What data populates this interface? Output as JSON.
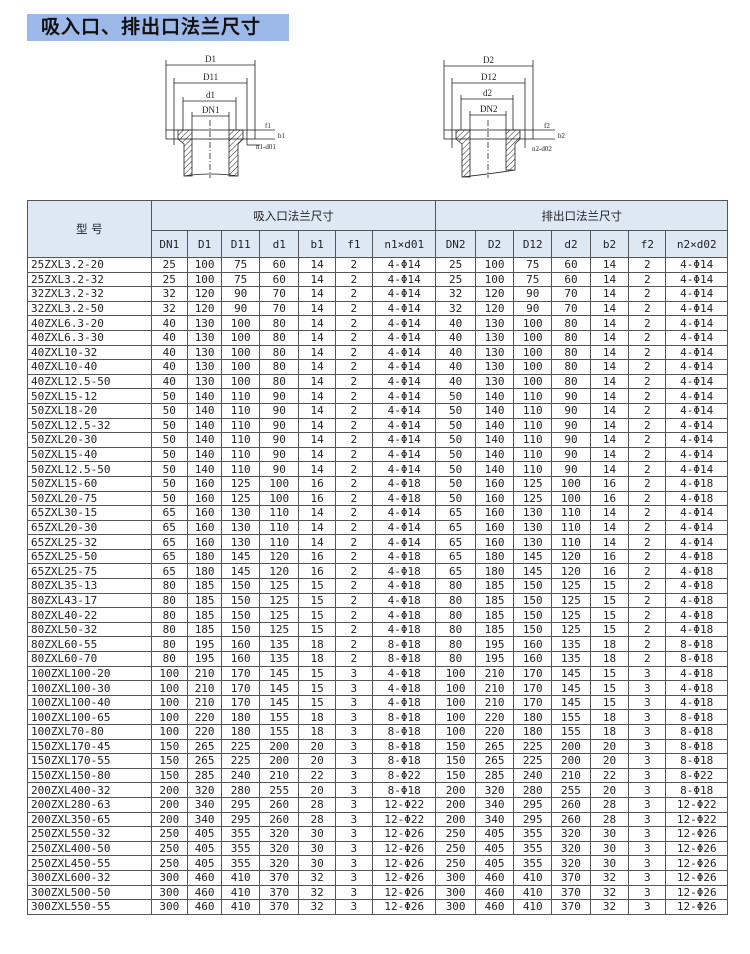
{
  "title": "吸入口、排出口法兰尺寸",
  "diagram_inlet": {
    "D": "D1",
    "D1x": "D11",
    "d": "d1",
    "DN": "DN1",
    "f": "f1",
    "b": "b1",
    "nd": "n1-d01"
  },
  "diagram_outlet": {
    "D": "D2",
    "D1x": "D12",
    "d": "d2",
    "DN": "DN2",
    "f": "f2",
    "b": "b2",
    "nd": "n2-d02"
  },
  "table": {
    "model_header": "型  号",
    "inlet_header": "吸入口法兰尺寸",
    "outlet_header": "排出口法兰尺寸",
    "columns": [
      "DN1",
      "D1",
      "D11",
      "d1",
      "b1",
      "f1",
      "n1×d01",
      "DN2",
      "D2",
      "D12",
      "d2",
      "b2",
      "f2",
      "n2×d02"
    ],
    "rows": [
      [
        "25ZXL3.2-20",
        "25",
        "100",
        "75",
        "60",
        "14",
        "2",
        "4-Φ14",
        "25",
        "100",
        "75",
        "60",
        "14",
        "2",
        "4-Φ14"
      ],
      [
        "25ZXL3.2-32",
        "25",
        "100",
        "75",
        "60",
        "14",
        "2",
        "4-Φ14",
        "25",
        "100",
        "75",
        "60",
        "14",
        "2",
        "4-Φ14"
      ],
      [
        "32ZXL3.2-32",
        "32",
        "120",
        "90",
        "70",
        "14",
        "2",
        "4-Φ14",
        "32",
        "120",
        "90",
        "70",
        "14",
        "2",
        "4-Φ14"
      ],
      [
        "32ZXL3.2-50",
        "32",
        "120",
        "90",
        "70",
        "14",
        "2",
        "4-Φ14",
        "32",
        "120",
        "90",
        "70",
        "14",
        "2",
        "4-Φ14"
      ],
      [
        "40ZXL6.3-20",
        "40",
        "130",
        "100",
        "80",
        "14",
        "2",
        "4-Φ14",
        "40",
        "130",
        "100",
        "80",
        "14",
        "2",
        "4-Φ14"
      ],
      [
        "40ZXL6.3-30",
        "40",
        "130",
        "100",
        "80",
        "14",
        "2",
        "4-Φ14",
        "40",
        "130",
        "100",
        "80",
        "14",
        "2",
        "4-Φ14"
      ],
      [
        "40ZXL10-32",
        "40",
        "130",
        "100",
        "80",
        "14",
        "2",
        "4-Φ14",
        "40",
        "130",
        "100",
        "80",
        "14",
        "2",
        "4-Φ14"
      ],
      [
        "40ZXL10-40",
        "40",
        "130",
        "100",
        "80",
        "14",
        "2",
        "4-Φ14",
        "40",
        "130",
        "100",
        "80",
        "14",
        "2",
        "4-Φ14"
      ],
      [
        "40ZXL12.5-50",
        "40",
        "130",
        "100",
        "80",
        "14",
        "2",
        "4-Φ14",
        "40",
        "130",
        "100",
        "80",
        "14",
        "2",
        "4-Φ14"
      ],
      [
        "50ZXL15-12",
        "50",
        "140",
        "110",
        "90",
        "14",
        "2",
        "4-Φ14",
        "50",
        "140",
        "110",
        "90",
        "14",
        "2",
        "4-Φ14"
      ],
      [
        "50ZXL18-20",
        "50",
        "140",
        "110",
        "90",
        "14",
        "2",
        "4-Φ14",
        "50",
        "140",
        "110",
        "90",
        "14",
        "2",
        "4-Φ14"
      ],
      [
        "50ZXL12.5-32",
        "50",
        "140",
        "110",
        "90",
        "14",
        "2",
        "4-Φ14",
        "50",
        "140",
        "110",
        "90",
        "14",
        "2",
        "4-Φ14"
      ],
      [
        "50ZXL20-30",
        "50",
        "140",
        "110",
        "90",
        "14",
        "2",
        "4-Φ14",
        "50",
        "140",
        "110",
        "90",
        "14",
        "2",
        "4-Φ14"
      ],
      [
        "50ZXL15-40",
        "50",
        "140",
        "110",
        "90",
        "14",
        "2",
        "4-Φ14",
        "50",
        "140",
        "110",
        "90",
        "14",
        "2",
        "4-Φ14"
      ],
      [
        "50ZXL12.5-50",
        "50",
        "140",
        "110",
        "90",
        "14",
        "2",
        "4-Φ14",
        "50",
        "140",
        "110",
        "90",
        "14",
        "2",
        "4-Φ14"
      ],
      [
        "50ZXL15-60",
        "50",
        "160",
        "125",
        "100",
        "16",
        "2",
        "4-Φ18",
        "50",
        "160",
        "125",
        "100",
        "16",
        "2",
        "4-Φ18"
      ],
      [
        "50ZXL20-75",
        "50",
        "160",
        "125",
        "100",
        "16",
        "2",
        "4-Φ18",
        "50",
        "160",
        "125",
        "100",
        "16",
        "2",
        "4-Φ18"
      ],
      [
        "65ZXL30-15",
        "65",
        "160",
        "130",
        "110",
        "14",
        "2",
        "4-Φ14",
        "65",
        "160",
        "130",
        "110",
        "14",
        "2",
        "4-Φ14"
      ],
      [
        "65ZXL20-30",
        "65",
        "160",
        "130",
        "110",
        "14",
        "2",
        "4-Φ14",
        "65",
        "160",
        "130",
        "110",
        "14",
        "2",
        "4-Φ14"
      ],
      [
        "65ZXL25-32",
        "65",
        "160",
        "130",
        "110",
        "14",
        "2",
        "4-Φ14",
        "65",
        "160",
        "130",
        "110",
        "14",
        "2",
        "4-Φ14"
      ],
      [
        "65ZXL25-50",
        "65",
        "180",
        "145",
        "120",
        "16",
        "2",
        "4-Φ18",
        "65",
        "180",
        "145",
        "120",
        "16",
        "2",
        "4-Φ18"
      ],
      [
        "65ZXL25-75",
        "65",
        "180",
        "145",
        "120",
        "16",
        "2",
        "4-Φ18",
        "65",
        "180",
        "145",
        "120",
        "16",
        "2",
        "4-Φ18"
      ],
      [
        "80ZXL35-13",
        "80",
        "185",
        "150",
        "125",
        "15",
        "2",
        "4-Φ18",
        "80",
        "185",
        "150",
        "125",
        "15",
        "2",
        "4-Φ18"
      ],
      [
        "80ZXL43-17",
        "80",
        "185",
        "150",
        "125",
        "15",
        "2",
        "4-Φ18",
        "80",
        "185",
        "150",
        "125",
        "15",
        "2",
        "4-Φ18"
      ],
      [
        "80ZXL40-22",
        "80",
        "185",
        "150",
        "125",
        "15",
        "2",
        "4-Φ18",
        "80",
        "185",
        "150",
        "125",
        "15",
        "2",
        "4-Φ18"
      ],
      [
        "80ZXL50-32",
        "80",
        "185",
        "150",
        "125",
        "15",
        "2",
        "4-Φ18",
        "80",
        "185",
        "150",
        "125",
        "15",
        "2",
        "4-Φ18"
      ],
      [
        "80ZXL60-55",
        "80",
        "195",
        "160",
        "135",
        "18",
        "2",
        "8-Φ18",
        "80",
        "195",
        "160",
        "135",
        "18",
        "2",
        "8-Φ18"
      ],
      [
        "80ZXL60-70",
        "80",
        "195",
        "160",
        "135",
        "18",
        "2",
        "8-Φ18",
        "80",
        "195",
        "160",
        "135",
        "18",
        "2",
        "8-Φ18"
      ],
      [
        "100ZXL100-20",
        "100",
        "210",
        "170",
        "145",
        "15",
        "3",
        "4-Φ18",
        "100",
        "210",
        "170",
        "145",
        "15",
        "3",
        "4-Φ18"
      ],
      [
        "100ZXL100-30",
        "100",
        "210",
        "170",
        "145",
        "15",
        "3",
        "4-Φ18",
        "100",
        "210",
        "170",
        "145",
        "15",
        "3",
        "4-Φ18"
      ],
      [
        "100ZXL100-40",
        "100",
        "210",
        "170",
        "145",
        "15",
        "3",
        "4-Φ18",
        "100",
        "210",
        "170",
        "145",
        "15",
        "3",
        "4-Φ18"
      ],
      [
        "100ZXL100-65",
        "100",
        "220",
        "180",
        "155",
        "18",
        "3",
        "8-Φ18",
        "100",
        "220",
        "180",
        "155",
        "18",
        "3",
        "8-Φ18"
      ],
      [
        "100ZXL70-80",
        "100",
        "220",
        "180",
        "155",
        "18",
        "3",
        "8-Φ18",
        "100",
        "220",
        "180",
        "155",
        "18",
        "3",
        "8-Φ18"
      ],
      [
        "150ZXL170-45",
        "150",
        "265",
        "225",
        "200",
        "20",
        "3",
        "8-Φ18",
        "150",
        "265",
        "225",
        "200",
        "20",
        "3",
        "8-Φ18"
      ],
      [
        "150ZXL170-55",
        "150",
        "265",
        "225",
        "200",
        "20",
        "3",
        "8-Φ18",
        "150",
        "265",
        "225",
        "200",
        "20",
        "3",
        "8-Φ18"
      ],
      [
        "150ZXL150-80",
        "150",
        "285",
        "240",
        "210",
        "22",
        "3",
        "8-Φ22",
        "150",
        "285",
        "240",
        "210",
        "22",
        "3",
        "8-Φ22"
      ],
      [
        "200ZXL400-32",
        "200",
        "320",
        "280",
        "255",
        "20",
        "3",
        "8-Φ18",
        "200",
        "320",
        "280",
        "255",
        "20",
        "3",
        "8-Φ18"
      ],
      [
        "200ZXL280-63",
        "200",
        "340",
        "295",
        "260",
        "28",
        "3",
        "12-Φ22",
        "200",
        "340",
        "295",
        "260",
        "28",
        "3",
        "12-Φ22"
      ],
      [
        "200ZXL350-65",
        "200",
        "340",
        "295",
        "260",
        "28",
        "3",
        "12-Φ22",
        "200",
        "340",
        "295",
        "260",
        "28",
        "3",
        "12-Φ22"
      ],
      [
        "250ZXL550-32",
        "250",
        "405",
        "355",
        "320",
        "30",
        "3",
        "12-Φ26",
        "250",
        "405",
        "355",
        "320",
        "30",
        "3",
        "12-Φ26"
      ],
      [
        "250ZXL400-50",
        "250",
        "405",
        "355",
        "320",
        "30",
        "3",
        "12-Φ26",
        "250",
        "405",
        "355",
        "320",
        "30",
        "3",
        "12-Φ26"
      ],
      [
        "250ZXL450-55",
        "250",
        "405",
        "355",
        "320",
        "30",
        "3",
        "12-Φ26",
        "250",
        "405",
        "355",
        "320",
        "30",
        "3",
        "12-Φ26"
      ],
      [
        "300ZXL600-32",
        "300",
        "460",
        "410",
        "370",
        "32",
        "3",
        "12-Φ26",
        "300",
        "460",
        "410",
        "370",
        "32",
        "3",
        "12-Φ26"
      ],
      [
        "300ZXL500-50",
        "300",
        "460",
        "410",
        "370",
        "32",
        "3",
        "12-Φ26",
        "300",
        "460",
        "410",
        "370",
        "32",
        "3",
        "12-Φ26"
      ],
      [
        "300ZXL550-55",
        "300",
        "460",
        "410",
        "370",
        "32",
        "3",
        "12-Φ26",
        "300",
        "460",
        "410",
        "370",
        "32",
        "3",
        "12-Φ26"
      ]
    ]
  }
}
